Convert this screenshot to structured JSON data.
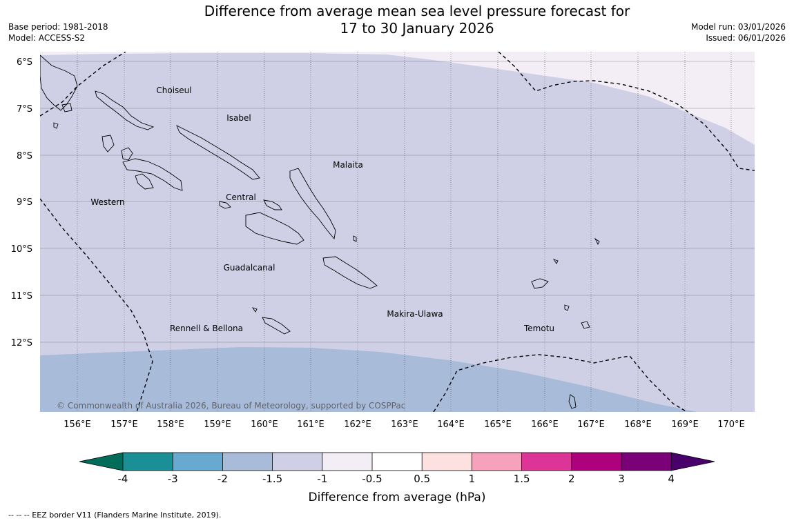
{
  "title": {
    "line1": "Difference from average mean sea level pressure forecast for",
    "line2": "17 to 30 January 2026"
  },
  "meta": {
    "base_period": "Base period: 1981-2018",
    "model": "Model: ACCESS-S2",
    "model_run": "Model run: 03/01/2026",
    "issued": "Issued: 06/01/2026"
  },
  "map": {
    "lat_labels": [
      "6°S",
      "7°S",
      "8°S",
      "9°S",
      "10°S",
      "11°S",
      "12°S"
    ],
    "lon_labels": [
      "156°E",
      "157°E",
      "158°E",
      "159°E",
      "160°E",
      "161°E",
      "162°E",
      "163°E",
      "164°E",
      "165°E",
      "166°E",
      "167°E",
      "168°E",
      "169°E",
      "170°E"
    ],
    "regions": {
      "choiseul": "Choiseul",
      "isabel": "Isabel",
      "malaita": "Malaita",
      "western": "Western",
      "central": "Central",
      "guadalcanal": "Guadalcanal",
      "makira": "Makira-Ulawa",
      "rennell": "Rennell & Bellona",
      "temotu": "Temotu"
    },
    "copyright": "© Commonwealth of Australia 2026, Bureau of Meteorology, supported by COSPPac",
    "fill_colors": {
      "band_-1.5_-1": "#cfd0e5",
      "band_-2_-1.5": "#a8bbd9",
      "band_-1_-0.5": "#f3eef6"
    }
  },
  "colorbar": {
    "ticks": [
      "-4",
      "-3",
      "-2",
      "-1.5",
      "-1",
      "-0.5",
      "0.5",
      "1",
      "1.5",
      "2",
      "3",
      "4"
    ],
    "colors": [
      "#1a9096",
      "#67a9cf",
      "#a8bbd9",
      "#cfd0e5",
      "#f3eef6",
      "#ffffff",
      "#fde0e0",
      "#f7a2bd",
      "#dd3497",
      "#ae017e",
      "#7a0177"
    ],
    "under_color": "#016c59",
    "over_color": "#49006a",
    "label": "Difference from average (hPa)"
  },
  "footnote": "--  --  -- EEZ border V11 (Flanders Marine Institute, 2019)."
}
